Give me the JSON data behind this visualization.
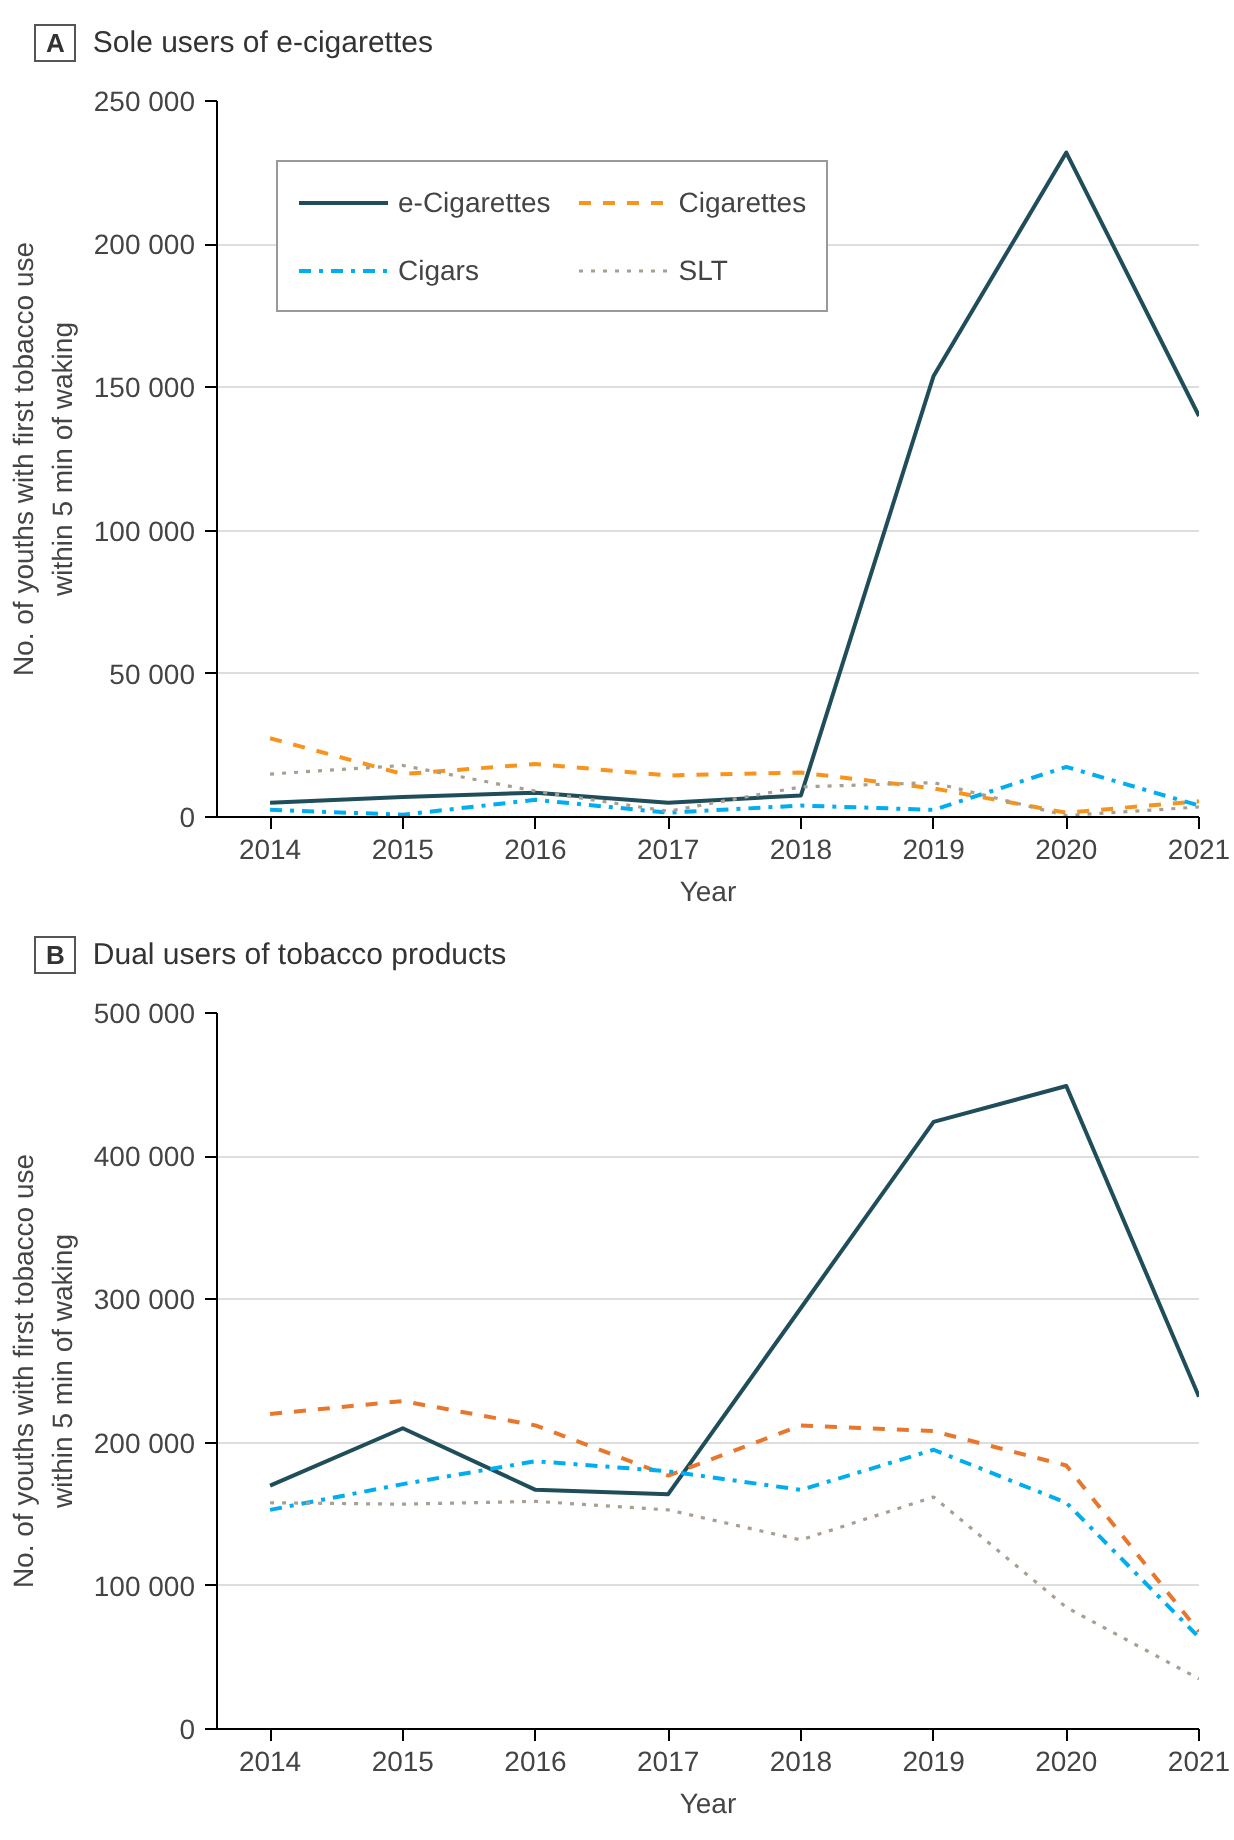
{
  "chart_data": [
    {
      "type": "line",
      "title": "Sole users of e-cigarettes",
      "annotations": [
        "A"
      ],
      "xlabel": "Year",
      "ylabel": "No. of youths with first tobacco use\nwithin 5 min of waking",
      "x": [
        2014,
        2015,
        2016,
        2017,
        2018,
        2019,
        2020,
        2021
      ],
      "xlim": [
        2013.6,
        2021
      ],
      "xticks": [
        2014,
        2015,
        2016,
        2017,
        2018,
        2019,
        2020,
        2021
      ],
      "ylim": [
        0,
        250000
      ],
      "yticks": [
        0,
        {
          "value": 50000,
          "label": "50 000"
        },
        {
          "value": 100000,
          "label": "100 000"
        },
        {
          "value": 150000,
          "label": "150 000"
        },
        {
          "value": 200000,
          "label": "200 000"
        },
        {
          "value": 250000,
          "label": "250 000"
        }
      ],
      "grid": "y",
      "legend": "top left",
      "marker": "none",
      "series": [
        {
          "name": "e-Cigarettes",
          "color": "#1f4e5a",
          "line_style": "solid",
          "values": [
            5000,
            7000,
            8500,
            5000,
            7500,
            154000,
            232000,
            140000
          ]
        },
        {
          "name": "Cigarettes",
          "color": "#f7941d",
          "line_style": "dashed",
          "values": [
            27500,
            15000,
            18500,
            14500,
            15500,
            10000,
            1500,
            5500
          ]
        },
        {
          "name": "Cigars",
          "color": "#00aeef",
          "line_style": "dashdot",
          "values": [
            2500,
            800,
            6000,
            1500,
            4000,
            2500,
            17500,
            4000
          ]
        },
        {
          "name": "SLT",
          "color": "#a89f91",
          "line_style": "dotted",
          "values": [
            15000,
            18000,
            9000,
            2000,
            10500,
            12000,
            500,
            3500
          ]
        }
      ]
    },
    {
      "type": "line",
      "title": "Dual users of tobacco products",
      "annotations": [
        "B"
      ],
      "xlabel": "Year",
      "ylabel": "No. of youths with first tobacco use\nwithin 5 min of waking",
      "x": [
        2014,
        2015,
        2016,
        2017,
        2018,
        2019,
        2020,
        2021
      ],
      "xlim": [
        2013.6,
        2021
      ],
      "xticks": [
        2014,
        2015,
        2016,
        2017,
        2018,
        2019,
        2020,
        2021
      ],
      "ylim": [
        0,
        500000
      ],
      "yticks": [
        0,
        {
          "value": 100000,
          "label": "100 000"
        },
        {
          "value": 200000,
          "label": "200 000"
        },
        {
          "value": 300000,
          "label": "300 000"
        },
        {
          "value": 400000,
          "label": "400 000"
        },
        {
          "value": 500000,
          "label": "500 000"
        }
      ],
      "grid": "y",
      "marker": "none",
      "series": [
        {
          "color": "#1f4e5a",
          "line_style": "solid",
          "values": [
            170000,
            210000,
            167000,
            164000,
            294000,
            424000,
            449000,
            232000
          ]
        },
        {
          "color": "#e8772e",
          "line_style": "dashed",
          "values": [
            220000,
            229000,
            212000,
            177000,
            212000,
            208000,
            184000,
            68000
          ]
        },
        {
          "color": "#00aeef",
          "line_style": "dashdot",
          "values": [
            153000,
            171000,
            187000,
            180000,
            167000,
            195000,
            158000,
            64000
          ]
        },
        {
          "color": "#a89f91",
          "line_style": "dotted",
          "values": [
            158000,
            157000,
            159000,
            153000,
            132000,
            162000,
            85000,
            35000
          ]
        }
      ]
    }
  ]
}
